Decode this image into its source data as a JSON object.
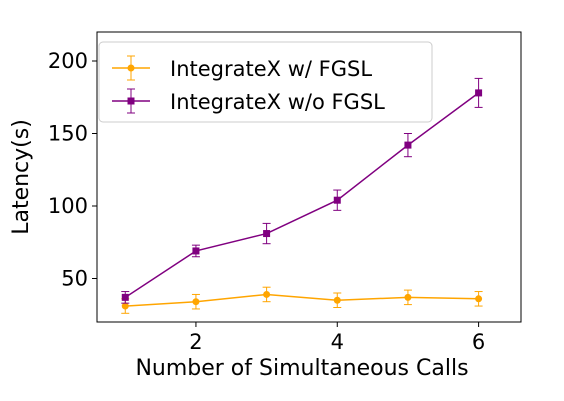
{
  "chart_data": {
    "type": "line",
    "xlabel": "Number of Simultaneous Calls",
    "ylabel": "Latency(s)",
    "xlim": [
      0.6,
      6.6
    ],
    "ylim": [
      20,
      220
    ],
    "xticks": [
      2,
      4,
      6
    ],
    "yticks": [
      50,
      100,
      150,
      200
    ],
    "grid": false,
    "legend_position": "top-left",
    "series": [
      {
        "name": "IntegrateX w/ FGSL",
        "color": "#FFA500",
        "marker": "circle",
        "x": [
          1,
          2,
          3,
          4,
          5,
          6
        ],
        "y": [
          31,
          34,
          39,
          35,
          37,
          36
        ],
        "err": [
          5,
          5,
          5,
          5,
          5,
          5
        ]
      },
      {
        "name": "IntegrateX w/o FGSL",
        "color": "#800080",
        "marker": "square",
        "x": [
          1,
          2,
          3,
          4,
          5,
          6
        ],
        "y": [
          37,
          69,
          81,
          104,
          142,
          178
        ],
        "err": [
          4,
          4,
          7,
          7,
          8,
          10
        ]
      }
    ]
  }
}
